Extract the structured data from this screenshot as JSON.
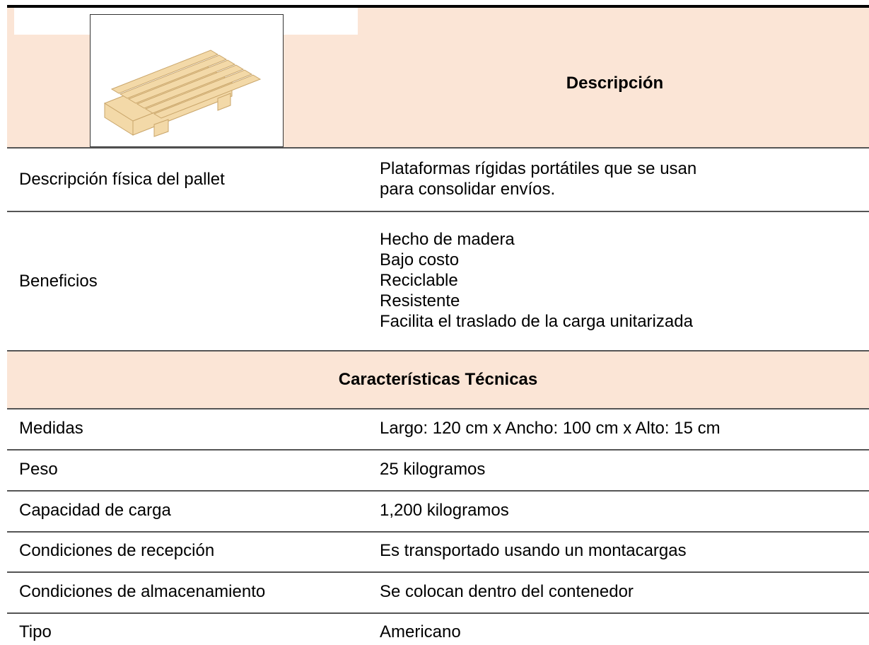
{
  "header": {
    "title": "Descripción"
  },
  "description_rows": [
    {
      "label": "Descripción física del pallet",
      "lines": [
        "Plataformas rígidas portátiles que se usan",
        "para consolidar envíos."
      ]
    },
    {
      "label": "Beneficios",
      "lines": [
        "Hecho de madera",
        "Bajo costo",
        "Reciclable",
        "Resistente",
        "Facilita el traslado de la carga unitarizada"
      ]
    }
  ],
  "section_title": "Características Técnicas",
  "technical_rows": [
    [
      "Medidas",
      "Largo: 120 cm x Ancho: 100 cm x Alto: 15 cm"
    ],
    [
      "Peso",
      "25 kilogramos"
    ],
    [
      "Capacidad de carga",
      "1,200 kilogramos"
    ],
    [
      "Condiciones de recepción",
      "Es transportado usando un montacargas"
    ],
    [
      "Condiciones de almacenamiento",
      "Se colocan dentro del contenedor"
    ],
    [
      "Tipo",
      "Americano"
    ]
  ]
}
